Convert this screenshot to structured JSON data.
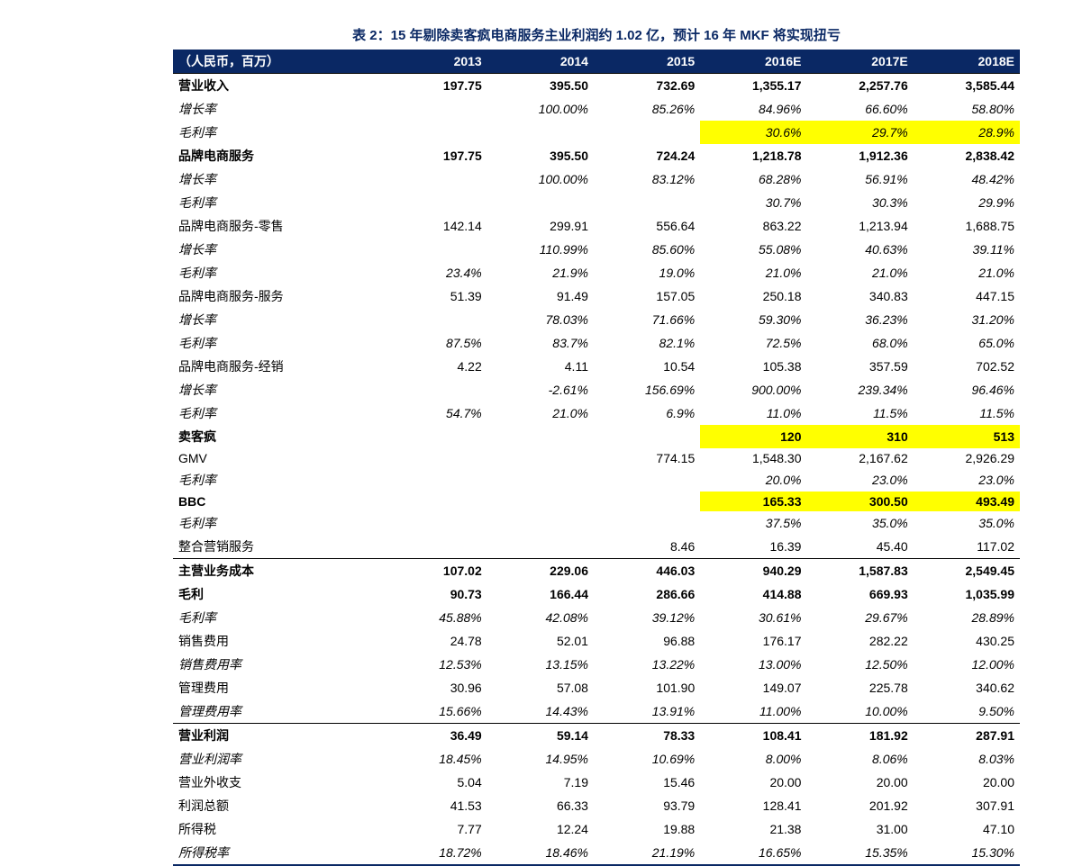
{
  "title": "表 2：15 年剔除卖客疯电商服务主业利润约 1.02 亿，预计 16 年 MKF 将实现扭亏",
  "cols": [
    "（人民币，百万）",
    "2013",
    "2014",
    "2015",
    "2016E",
    "2017E",
    "2018E"
  ],
  "rows": [
    {
      "l": "营业收入",
      "v": [
        "197.75",
        "395.50",
        "732.69",
        "1,355.17",
        "2,257.76",
        "3,585.44"
      ],
      "cls": "bold border-top-thin"
    },
    {
      "l": "增长率",
      "v": [
        "",
        "100.00%",
        "85.26%",
        "84.96%",
        "66.60%",
        "58.80%"
      ],
      "cls": "italic"
    },
    {
      "l": "毛利率",
      "v": [
        "",
        "",
        "",
        "30.6%",
        "29.7%",
        "28.9%"
      ],
      "cls": "italic",
      "hl": [
        3,
        4,
        5
      ]
    },
    {
      "l": "品牌电商服务",
      "v": [
        "197.75",
        "395.50",
        "724.24",
        "1,218.78",
        "1,912.36",
        "2,838.42"
      ],
      "cls": "bold"
    },
    {
      "l": "增长率",
      "v": [
        "",
        "100.00%",
        "83.12%",
        "68.28%",
        "56.91%",
        "48.42%"
      ],
      "cls": "italic"
    },
    {
      "l": "毛利率",
      "v": [
        "",
        "",
        "",
        "30.7%",
        "30.3%",
        "29.9%"
      ],
      "cls": "italic"
    },
    {
      "l": "品牌电商服务-零售",
      "v": [
        "142.14",
        "299.91",
        "556.64",
        "863.22",
        "1,213.94",
        "1,688.75"
      ],
      "cls": ""
    },
    {
      "l": "增长率",
      "v": [
        "",
        "110.99%",
        "85.60%",
        "55.08%",
        "40.63%",
        "39.11%"
      ],
      "cls": "italic"
    },
    {
      "l": "毛利率",
      "v": [
        "23.4%",
        "21.9%",
        "19.0%",
        "21.0%",
        "21.0%",
        "21.0%"
      ],
      "cls": "italic"
    },
    {
      "l": "品牌电商服务-服务",
      "v": [
        "51.39",
        "91.49",
        "157.05",
        "250.18",
        "340.83",
        "447.15"
      ],
      "cls": ""
    },
    {
      "l": "增长率",
      "v": [
        "",
        "78.03%",
        "71.66%",
        "59.30%",
        "36.23%",
        "31.20%"
      ],
      "cls": "italic"
    },
    {
      "l": "毛利率",
      "v": [
        "87.5%",
        "83.7%",
        "82.1%",
        "72.5%",
        "68.0%",
        "65.0%"
      ],
      "cls": "italic"
    },
    {
      "l": "品牌电商服务-经销",
      "v": [
        "4.22",
        "4.11",
        "10.54",
        "105.38",
        "357.59",
        "702.52"
      ],
      "cls": ""
    },
    {
      "l": "增长率",
      "v": [
        "",
        "-2.61%",
        "156.69%",
        "900.00%",
        "239.34%",
        "96.46%"
      ],
      "cls": "italic"
    },
    {
      "l": "毛利率",
      "v": [
        "54.7%",
        "21.0%",
        "6.9%",
        "11.0%",
        "11.5%",
        "11.5%"
      ],
      "cls": "italic"
    },
    {
      "l": "卖客疯",
      "v": [
        "",
        "",
        "",
        "120",
        "310",
        "513"
      ],
      "cls": "bold",
      "hl": [
        3,
        4,
        5
      ]
    },
    {
      "l": "GMV",
      "v": [
        "",
        "",
        "774.15",
        "1,548.30",
        "2,167.62",
        "2,926.29"
      ],
      "cls": ""
    },
    {
      "l": "毛利率",
      "v": [
        "",
        "",
        "",
        "20.0%",
        "23.0%",
        "23.0%"
      ],
      "cls": "italic"
    },
    {
      "l": "BBC",
      "v": [
        "",
        "",
        "",
        "165.33",
        "300.50",
        "493.49"
      ],
      "cls": "bold",
      "hl": [
        3,
        4,
        5
      ]
    },
    {
      "l": "毛利率",
      "v": [
        "",
        "",
        "",
        "37.5%",
        "35.0%",
        "35.0%"
      ],
      "cls": "italic"
    },
    {
      "l": "整合营销服务",
      "v": [
        "",
        "",
        "8.46",
        "16.39",
        "45.40",
        "117.02"
      ],
      "cls": ""
    },
    {
      "l": "主营业务成本",
      "v": [
        "107.02",
        "229.06",
        "446.03",
        "940.29",
        "1,587.83",
        "2,549.45"
      ],
      "cls": "bold border-top-thin"
    },
    {
      "l": "毛利",
      "v": [
        "90.73",
        "166.44",
        "286.66",
        "414.88",
        "669.93",
        "1,035.99"
      ],
      "cls": "bold"
    },
    {
      "l": "毛利率",
      "v": [
        "45.88%",
        "42.08%",
        "39.12%",
        "30.61%",
        "29.67%",
        "28.89%"
      ],
      "cls": "italic"
    },
    {
      "l": "销售费用",
      "v": [
        "24.78",
        "52.01",
        "96.88",
        "176.17",
        "282.22",
        "430.25"
      ],
      "cls": ""
    },
    {
      "l": "销售费用率",
      "v": [
        "12.53%",
        "13.15%",
        "13.22%",
        "13.00%",
        "12.50%",
        "12.00%"
      ],
      "cls": "italic"
    },
    {
      "l": "管理费用",
      "v": [
        "30.96",
        "57.08",
        "101.90",
        "149.07",
        "225.78",
        "340.62"
      ],
      "cls": ""
    },
    {
      "l": "管理费用率",
      "v": [
        "15.66%",
        "14.43%",
        "13.91%",
        "11.00%",
        "10.00%",
        "9.50%"
      ],
      "cls": "italic"
    },
    {
      "l": "营业利润",
      "v": [
        "36.49",
        "59.14",
        "78.33",
        "108.41",
        "181.92",
        "287.91"
      ],
      "cls": "bold border-top-thin"
    },
    {
      "l": "营业利润率",
      "v": [
        "18.45%",
        "14.95%",
        "10.69%",
        "8.00%",
        "8.06%",
        "8.03%"
      ],
      "cls": "italic"
    },
    {
      "l": "营业外收支",
      "v": [
        "5.04",
        "7.19",
        "15.46",
        "20.00",
        "20.00",
        "20.00"
      ],
      "cls": ""
    },
    {
      "l": "利润总额",
      "v": [
        "41.53",
        "66.33",
        "93.79",
        "128.41",
        "201.92",
        "307.91"
      ],
      "cls": ""
    },
    {
      "l": "所得税",
      "v": [
        "7.77",
        "12.24",
        "19.88",
        "21.38",
        "31.00",
        "47.10"
      ],
      "cls": ""
    },
    {
      "l": "所得税率",
      "v": [
        "18.72%",
        "18.46%",
        "21.19%",
        "16.65%",
        "15.35%",
        "15.30%"
      ],
      "cls": "italic last-row"
    }
  ]
}
